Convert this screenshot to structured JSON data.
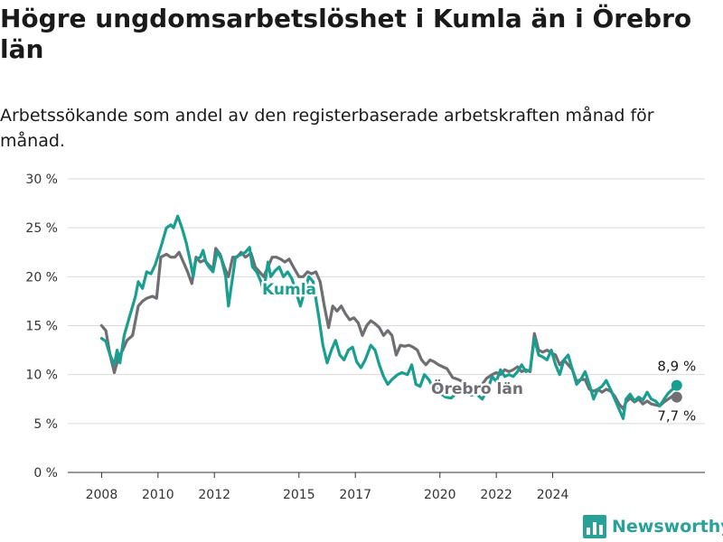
{
  "chart_data": {
    "type": "line",
    "title": "Högre ungdomsarbetslöshet i Kumla än i Örebro län",
    "subtitle": "Arbetssökande som andel av den registerbaserade arbetskraften månad för månad.",
    "ylim": [
      0,
      30
    ],
    "y_ticks": [
      "0 %",
      "5 %",
      "10 %",
      "15 %",
      "20 %",
      "25 %",
      "30 %"
    ],
    "x_ticks": [
      "2008",
      "2010",
      "2012",
      "2015",
      "2017",
      "2020",
      "2022",
      "2024"
    ],
    "grid": true,
    "legend": "inline labels",
    "series": [
      {
        "name": "Kumla",
        "color": "#1a9e8f",
        "end_label": "8,9 %",
        "points": [
          [
            2008.0,
            13.7
          ],
          [
            2008.15,
            13.4
          ],
          [
            2008.3,
            12.0
          ],
          [
            2008.45,
            11.0
          ],
          [
            2008.55,
            12.5
          ],
          [
            2008.65,
            11.2
          ],
          [
            2008.8,
            14.0
          ],
          [
            2009.0,
            16.0
          ],
          [
            2009.2,
            18.0
          ],
          [
            2009.3,
            19.5
          ],
          [
            2009.45,
            18.8
          ],
          [
            2009.6,
            20.5
          ],
          [
            2009.75,
            20.3
          ],
          [
            2009.9,
            21.2
          ],
          [
            2010.1,
            23.0
          ],
          [
            2010.3,
            25.0
          ],
          [
            2010.45,
            25.3
          ],
          [
            2010.55,
            25.0
          ],
          [
            2010.7,
            26.2
          ],
          [
            2010.85,
            25.0
          ],
          [
            2011.0,
            23.5
          ],
          [
            2011.15,
            21.5
          ],
          [
            2011.25,
            20.0
          ],
          [
            2011.35,
            21.8
          ],
          [
            2011.5,
            22.0
          ],
          [
            2011.6,
            22.7
          ],
          [
            2011.7,
            21.5
          ],
          [
            2011.8,
            21.0
          ],
          [
            2011.95,
            20.5
          ],
          [
            2012.1,
            22.6
          ],
          [
            2012.25,
            21.8
          ],
          [
            2012.4,
            20.0
          ],
          [
            2012.5,
            17.0
          ],
          [
            2012.6,
            19.0
          ],
          [
            2012.75,
            22.0
          ],
          [
            2012.9,
            22.2
          ],
          [
            2013.1,
            22.5
          ],
          [
            2013.25,
            23.0
          ],
          [
            2013.35,
            21.0
          ],
          [
            2013.5,
            20.5
          ],
          [
            2013.65,
            19.5
          ],
          [
            2013.75,
            18.5
          ],
          [
            2013.9,
            21.5
          ],
          [
            2014.0,
            20.0
          ],
          [
            2014.15,
            20.6
          ],
          [
            2014.3,
            21.0
          ],
          [
            2014.45,
            20.0
          ],
          [
            2014.6,
            20.5
          ],
          [
            2014.75,
            19.8
          ],
          [
            2015.05,
            17.0
          ],
          [
            2015.2,
            18.5
          ],
          [
            2015.35,
            20.0
          ],
          [
            2015.5,
            19.5
          ],
          [
            2015.7,
            16.0
          ],
          [
            2015.85,
            13.0
          ],
          [
            2016.0,
            11.2
          ],
          [
            2016.15,
            12.5
          ],
          [
            2016.3,
            13.5
          ],
          [
            2016.45,
            12.0
          ],
          [
            2016.6,
            11.5
          ],
          [
            2016.75,
            12.5
          ],
          [
            2016.9,
            12.8
          ],
          [
            2017.05,
            11.3
          ],
          [
            2017.2,
            10.7
          ],
          [
            2017.35,
            11.5
          ],
          [
            2017.55,
            13.0
          ],
          [
            2017.7,
            12.5
          ],
          [
            2017.85,
            11.0
          ],
          [
            2018.0,
            9.8
          ],
          [
            2018.15,
            9.0
          ],
          [
            2018.3,
            9.5
          ],
          [
            2018.5,
            10.0
          ],
          [
            2018.65,
            10.2
          ],
          [
            2018.85,
            10.0
          ],
          [
            2019.0,
            11.0
          ],
          [
            2019.15,
            9.0
          ],
          [
            2019.3,
            8.8
          ],
          [
            2019.45,
            10.0
          ],
          [
            2019.6,
            9.5
          ],
          [
            2019.7,
            9.0
          ],
          [
            2019.8,
            8.8
          ],
          [
            2019.9,
            8.5
          ],
          [
            2020.05,
            8.0
          ],
          [
            2020.2,
            7.7
          ],
          [
            2020.4,
            7.6
          ],
          [
            2020.55,
            8.0
          ],
          [
            2020.7,
            8.5
          ],
          [
            2020.9,
            8.3
          ],
          [
            2021.1,
            7.9
          ],
          [
            2021.3,
            8.0
          ],
          [
            2021.5,
            7.5
          ],
          [
            2021.7,
            8.5
          ],
          [
            2021.85,
            9.8
          ],
          [
            2022.0,
            9.3
          ],
          [
            2022.15,
            10.5
          ],
          [
            2022.3,
            9.8
          ],
          [
            2022.45,
            10.0
          ],
          [
            2022.6,
            9.8
          ],
          [
            2022.75,
            10.3
          ],
          [
            2022.9,
            11.0
          ],
          [
            2023.05,
            10.3
          ],
          [
            2023.2,
            10.5
          ],
          [
            2023.35,
            13.7
          ],
          [
            2023.5,
            12.0
          ],
          [
            2023.65,
            11.8
          ],
          [
            2023.8,
            11.5
          ],
          [
            2023.95,
            12.5
          ],
          [
            2024.1,
            11.0
          ],
          [
            2024.25,
            10.0
          ],
          [
            2024.4,
            11.5
          ],
          [
            2024.55,
            12.0
          ],
          [
            2024.7,
            10.5
          ],
          [
            2024.85,
            9.0
          ],
          [
            2025.0,
            9.5
          ],
          [
            2025.15,
            10.3
          ],
          [
            2025.3,
            9.0
          ],
          [
            2025.45,
            7.5
          ],
          [
            2025.6,
            8.5
          ],
          [
            2025.75,
            8.8
          ],
          [
            2025.9,
            9.4
          ],
          [
            2026.05,
            8.5
          ],
          [
            2026.2,
            7.5
          ],
          [
            2026.35,
            6.5
          ],
          [
            2026.5,
            5.5
          ],
          [
            2026.6,
            7.5
          ],
          [
            2026.75,
            8.0
          ],
          [
            2026.9,
            7.3
          ],
          [
            2027.05,
            7.7
          ],
          [
            2027.2,
            7.4
          ],
          [
            2027.35,
            8.2
          ],
          [
            2027.5,
            7.5
          ],
          [
            2027.65,
            7.3
          ],
          [
            2027.8,
            6.8
          ],
          [
            2027.95,
            7.5
          ],
          [
            2028.1,
            8.1
          ],
          [
            2028.25,
            8.5
          ],
          [
            2028.4,
            8.9
          ]
        ]
      },
      {
        "name": "Örebro län",
        "color": "#6e6e73",
        "end_label": "7,7 %",
        "points": [
          [
            2008.0,
            15.0
          ],
          [
            2008.15,
            14.5
          ],
          [
            2008.3,
            12.0
          ],
          [
            2008.45,
            10.2
          ],
          [
            2008.6,
            11.8
          ],
          [
            2008.75,
            12.5
          ],
          [
            2008.9,
            13.5
          ],
          [
            2009.1,
            14.0
          ],
          [
            2009.3,
            17.0
          ],
          [
            2009.45,
            17.5
          ],
          [
            2009.6,
            17.8
          ],
          [
            2009.8,
            18.0
          ],
          [
            2009.95,
            17.8
          ],
          [
            2010.1,
            22.0
          ],
          [
            2010.3,
            22.3
          ],
          [
            2010.45,
            22.0
          ],
          [
            2010.6,
            22.0
          ],
          [
            2010.75,
            22.5
          ],
          [
            2010.9,
            21.5
          ],
          [
            2011.05,
            20.5
          ],
          [
            2011.2,
            19.3
          ],
          [
            2011.35,
            22.0
          ],
          [
            2011.5,
            21.5
          ],
          [
            2011.65,
            21.7
          ],
          [
            2011.8,
            21.2
          ],
          [
            2011.95,
            20.8
          ],
          [
            2012.05,
            22.9
          ],
          [
            2012.2,
            22.3
          ],
          [
            2012.35,
            21.0
          ],
          [
            2012.5,
            20.0
          ],
          [
            2012.65,
            22.0
          ],
          [
            2012.8,
            22.0
          ],
          [
            2012.95,
            22.5
          ],
          [
            2013.1,
            22.0
          ],
          [
            2013.3,
            22.4
          ],
          [
            2013.45,
            21.0
          ],
          [
            2013.6,
            20.5
          ],
          [
            2013.75,
            20.0
          ],
          [
            2013.9,
            21.0
          ],
          [
            2014.05,
            22.0
          ],
          [
            2014.2,
            22.0
          ],
          [
            2014.35,
            21.8
          ],
          [
            2014.5,
            21.5
          ],
          [
            2014.65,
            21.8
          ],
          [
            2014.8,
            21.0
          ],
          [
            2015.0,
            20.0
          ],
          [
            2015.15,
            20.0
          ],
          [
            2015.3,
            20.5
          ],
          [
            2015.45,
            20.3
          ],
          [
            2015.6,
            20.5
          ],
          [
            2015.75,
            19.5
          ],
          [
            2015.9,
            17.0
          ],
          [
            2016.05,
            14.8
          ],
          [
            2016.2,
            17.0
          ],
          [
            2016.35,
            16.5
          ],
          [
            2016.5,
            17.0
          ],
          [
            2016.65,
            16.2
          ],
          [
            2016.8,
            15.6
          ],
          [
            2016.95,
            15.8
          ],
          [
            2017.1,
            15.3
          ],
          [
            2017.25,
            14.0
          ],
          [
            2017.4,
            15.0
          ],
          [
            2017.55,
            15.5
          ],
          [
            2017.7,
            15.2
          ],
          [
            2017.85,
            14.8
          ],
          [
            2018.0,
            14.0
          ],
          [
            2018.15,
            14.5
          ],
          [
            2018.3,
            14.0
          ],
          [
            2018.45,
            12.0
          ],
          [
            2018.6,
            13.0
          ],
          [
            2018.75,
            12.9
          ],
          [
            2018.9,
            13.0
          ],
          [
            2019.05,
            12.8
          ],
          [
            2019.2,
            12.5
          ],
          [
            2019.35,
            11.5
          ],
          [
            2019.5,
            11.0
          ],
          [
            2019.65,
            11.5
          ],
          [
            2019.8,
            11.3
          ],
          [
            2019.95,
            11.0
          ],
          [
            2020.1,
            10.8
          ],
          [
            2020.25,
            10.6
          ],
          [
            2020.45,
            9.7
          ],
          [
            2020.65,
            9.5
          ],
          [
            2020.85,
            9.2
          ],
          [
            2021.05,
            8.8
          ],
          [
            2021.25,
            8.5
          ],
          [
            2021.45,
            8.8
          ],
          [
            2021.65,
            9.6
          ],
          [
            2021.85,
            10.0
          ],
          [
            2022.0,
            10.2
          ],
          [
            2022.15,
            10.0
          ],
          [
            2022.3,
            10.5
          ],
          [
            2022.45,
            10.3
          ],
          [
            2022.6,
            10.5
          ],
          [
            2022.75,
            10.8
          ],
          [
            2022.9,
            10.3
          ],
          [
            2023.05,
            10.5
          ],
          [
            2023.2,
            10.3
          ],
          [
            2023.35,
            14.2
          ],
          [
            2023.5,
            12.5
          ],
          [
            2023.65,
            12.3
          ],
          [
            2023.8,
            12.5
          ],
          [
            2023.95,
            12.2
          ],
          [
            2024.1,
            12.0
          ],
          [
            2024.25,
            11.0
          ],
          [
            2024.4,
            11.5
          ],
          [
            2024.55,
            11.0
          ],
          [
            2024.7,
            10.5
          ],
          [
            2024.85,
            9.3
          ],
          [
            2025.0,
            9.5
          ],
          [
            2025.15,
            9.5
          ],
          [
            2025.3,
            8.5
          ],
          [
            2025.45,
            8.3
          ],
          [
            2025.6,
            8.5
          ],
          [
            2025.75,
            8.2
          ],
          [
            2025.9,
            8.5
          ],
          [
            2026.05,
            8.3
          ],
          [
            2026.2,
            7.8
          ],
          [
            2026.35,
            7.0
          ],
          [
            2026.5,
            6.5
          ],
          [
            2026.6,
            7.2
          ],
          [
            2026.75,
            7.6
          ],
          [
            2026.9,
            7.2
          ],
          [
            2027.05,
            7.5
          ],
          [
            2027.2,
            7.0
          ],
          [
            2027.35,
            7.3
          ],
          [
            2027.5,
            7.0
          ],
          [
            2027.65,
            6.9
          ],
          [
            2027.8,
            6.8
          ],
          [
            2027.95,
            7.2
          ],
          [
            2028.1,
            7.5
          ],
          [
            2028.25,
            7.8
          ],
          [
            2028.4,
            7.7
          ]
        ]
      }
    ]
  },
  "footer": {
    "brand": "Newsworthy",
    "logo_icon": "bar-chart-logo-icon"
  }
}
